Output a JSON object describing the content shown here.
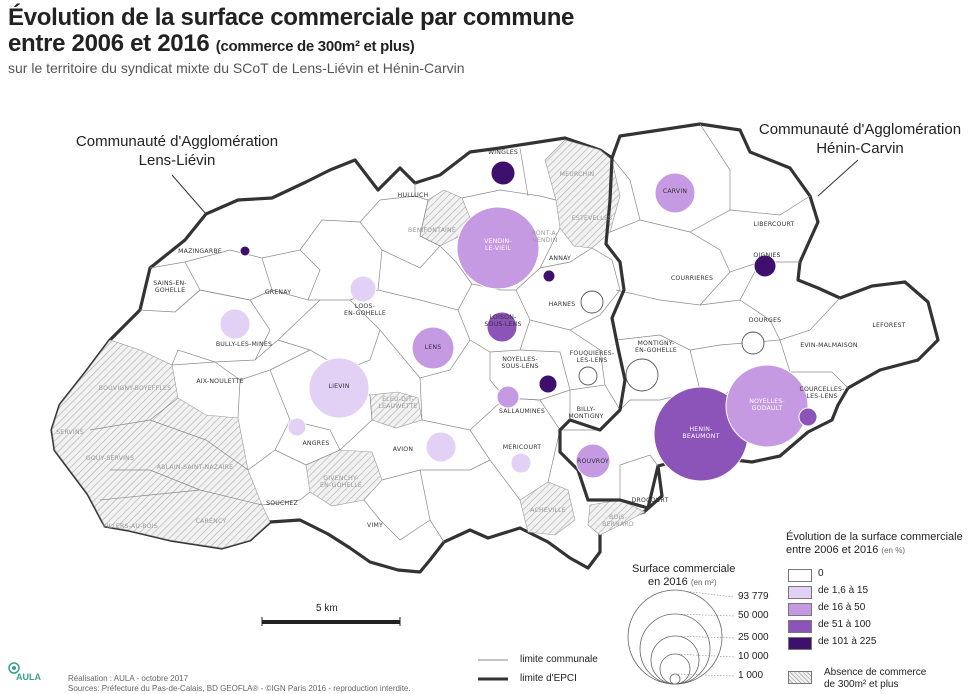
{
  "title": {
    "line1": "Évolution de la surface commerciale par commune",
    "line2": "entre 2006 et 2016",
    "line2_sub": "(commerce de 300m² et plus)",
    "subtitle": "sur le territoire du syndicat mixte du SCoT de Lens-Liévin et Hénin-Carvin"
  },
  "epci": {
    "lens_lievin": [
      "Communauté d'Agglomération",
      "Lens-Liévin"
    ],
    "henin_carvin": [
      "Communauté d'Agglomération",
      "Hénin-Carvin"
    ]
  },
  "colors": {
    "class0": "#ffffff",
    "class1": "#e3d0f5",
    "class2": "#c59ae3",
    "class3": "#8c53b8",
    "class4": "#3f0f6e",
    "hatch": "#bdbdbd",
    "border": "#444444"
  },
  "communes": [
    {
      "name": "WINGLES",
      "lines": [
        "WINGLES"
      ],
      "cls": 4,
      "r": 12
    },
    {
      "name": "MEURCHIN",
      "lines": [
        "MEURCHIN"
      ],
      "cls": -1
    },
    {
      "name": "ESTEVELLES",
      "lines": [
        "ESTEVELLES"
      ],
      "cls": -1
    },
    {
      "name": "HULLUCH",
      "lines": [
        "HULLUCH"
      ],
      "cls": 0,
      "r": 0
    },
    {
      "name": "BENIFONTAINE",
      "lines": [
        "BENIFONTAINE"
      ],
      "cls": -1
    },
    {
      "name": "VENDIN-LE-VIEIL",
      "lines": [
        "VENDIN-",
        "LE-VIEIL"
      ],
      "cls": 2,
      "r": 41
    },
    {
      "name": "PONT-A-VENDIN",
      "lines": [
        "PONT-A-",
        "VENDIN"
      ],
      "cls": -1
    },
    {
      "name": "ANNAY",
      "lines": [
        "ANNAY"
      ],
      "cls": 4,
      "r": 6
    },
    {
      "name": "CARVIN",
      "lines": [
        "CARVIN"
      ],
      "cls": 2,
      "r": 20
    },
    {
      "name": "LIBERCOURT",
      "lines": [
        "LIBERCOURT"
      ],
      "cls": 0,
      "r": 0
    },
    {
      "name": "MAZINGARBE",
      "lines": [
        "MAZINGARBE"
      ],
      "cls": 4,
      "r": 5
    },
    {
      "name": "SAINS-EN-GOHELLE",
      "lines": [
        "SAINS-EN-",
        "GOHELLE"
      ],
      "cls": 0,
      "r": 0
    },
    {
      "name": "GRENAY",
      "lines": [
        "GRENAY"
      ],
      "cls": 0,
      "r": 0
    },
    {
      "name": "LOOS-EN-GOHELLE",
      "lines": [
        "LOOS-",
        "EN-GOHELLE"
      ],
      "cls": 1,
      "r": 13
    },
    {
      "name": "HARNES",
      "lines": [
        "HARNES"
      ],
      "cls": 0,
      "r": 11
    },
    {
      "name": "COURRIERES",
      "lines": [
        "COURRIERES"
      ],
      "cls": 0,
      "r": 0
    },
    {
      "name": "OIGNIES",
      "lines": [
        "OIGNIES"
      ],
      "cls": 4,
      "r": 11
    },
    {
      "name": "BULLY-LES-MINES",
      "lines": [
        "BULLY-LES-MINES"
      ],
      "cls": 1,
      "r": 15
    },
    {
      "name": "LOISON-SOUS-LENS",
      "lines": [
        "LOISON-",
        "SOUS-LENS"
      ],
      "cls": 3,
      "r": 15
    },
    {
      "name": "LENS",
      "lines": [
        "LENS"
      ],
      "cls": 2,
      "r": 21
    },
    {
      "name": "DOURGES",
      "lines": [
        "DOURGES"
      ],
      "cls": 0,
      "r": 11
    },
    {
      "name": "LEFOREST",
      "lines": [
        "LEFOREST"
      ],
      "cls": 0,
      "r": 0
    },
    {
      "name": "EVIN-MALMAISON",
      "lines": [
        "EVIN-MALMAISON"
      ],
      "cls": 0,
      "r": 0
    },
    {
      "name": "MONTIGNY-EN-GOHELLE",
      "lines": [
        "MONTIGNY-",
        "EN-GOHELLE"
      ],
      "cls": 0,
      "r": 16
    },
    {
      "name": "NOYELLES-SOUS-LENS",
      "lines": [
        "NOYELLES-",
        "SOUS-LENS"
      ],
      "cls": 4,
      "r": 9
    },
    {
      "name": "FOUQUIERES-LES-LENS",
      "lines": [
        "FOUQUIERES-",
        "LES-LENS"
      ],
      "cls": 0,
      "r": 9
    },
    {
      "name": "AIX-NOULETTE",
      "lines": [
        "AIX-NOULETTE"
      ],
      "cls": 0,
      "r": 0
    },
    {
      "name": "LIEVIN",
      "lines": [
        "LIEVIN"
      ],
      "cls": 1,
      "r": 30
    },
    {
      "name": "ELEU-DIT-LEAUWETTE",
      "lines": [
        "ELEU-DIT-",
        "LEAUWETTE"
      ],
      "cls": -1
    },
    {
      "name": "SALLAUMINES",
      "lines": [
        "SALLAUMINES"
      ],
      "cls": 2,
      "r": 11
    },
    {
      "name": "BILLY-MONTIGNY",
      "lines": [
        "BILLY-",
        "MONTIGNY"
      ],
      "cls": 0,
      "r": 0
    },
    {
      "name": "NOYELLES-GODAULT",
      "lines": [
        "NOYELLES-",
        "GODAULT"
      ],
      "cls": 2,
      "r": 41
    },
    {
      "name": "COURCELLES-LES-LENS",
      "lines": [
        "COURCELLES-",
        "LES-LENS"
      ],
      "cls": 3,
      "r": 9
    },
    {
      "name": "BOUVIGNY-BOYEFFLES",
      "lines": [
        "BOUVIGNY-BOYEFFLES"
      ],
      "cls": -1
    },
    {
      "name": "ANGRES",
      "lines": [
        "ANGRES"
      ],
      "cls": 1,
      "r": 9
    },
    {
      "name": "HENIN-BEAUMONT",
      "lines": [
        "HENIN-",
        "BEAUMONT"
      ],
      "cls": 3,
      "r": 47
    },
    {
      "name": "SERVINS",
      "lines": [
        "SERVINS"
      ],
      "cls": -1
    },
    {
      "name": "GOUY-SERVINS",
      "lines": [
        "GOUY-SERVINS"
      ],
      "cls": -1
    },
    {
      "name": "ABLAIN-SAINT-NAZAIRE",
      "lines": [
        "ABLAIN-SAINT-NAZAIRE"
      ],
      "cls": -1
    },
    {
      "name": "AVION",
      "lines": [
        "AVION"
      ],
      "cls": 1,
      "r": 15
    },
    {
      "name": "MERICOURT",
      "lines": [
        "MERICOURT"
      ],
      "cls": 1,
      "r": 10
    },
    {
      "name": "ROUVROY",
      "lines": [
        "ROUVROY"
      ],
      "cls": 2,
      "r": 17
    },
    {
      "name": "DROCOURT",
      "lines": [
        "DROCOURT"
      ],
      "cls": 0,
      "r": 0
    },
    {
      "name": "GIVENCHY-EN-GOHELLE",
      "lines": [
        "GIVENCHY-",
        "EN-GOHELLE"
      ],
      "cls": -1
    },
    {
      "name": "SOUCHEZ",
      "lines": [
        "SOUCHEZ"
      ],
      "cls": 0,
      "r": 0
    },
    {
      "name": "VILLERS-AU-BOIS",
      "lines": [
        "VILLERS-AU-BOIS"
      ],
      "cls": -1
    },
    {
      "name": "CARENCY",
      "lines": [
        "CARENCY"
      ],
      "cls": -1
    },
    {
      "name": "ACHEVILLE",
      "lines": [
        "ACHEVILLE"
      ],
      "cls": -1
    },
    {
      "name": "VIMY",
      "lines": [
        "VIMY"
      ],
      "cls": 0,
      "r": 0
    },
    {
      "name": "BOIS-BERNARD",
      "lines": [
        "BOIS-",
        "BERNARD"
      ],
      "cls": -1
    }
  ],
  "scale_bar": {
    "label": "5 km"
  },
  "legend": {
    "evolution_title_line1": "Évolution de la surface commerciale",
    "evolution_title_line2": "entre 2006 et 2016",
    "evolution_unit": "(en %)",
    "classes": [
      {
        "label": "0",
        "color": "#ffffff"
      },
      {
        "label": "de 1,6 à 15",
        "color": "#e3d0f5"
      },
      {
        "label": "de 16 à 50",
        "color": "#c59ae3"
      },
      {
        "label": "de 51 à 100",
        "color": "#8c53b8"
      },
      {
        "label": "de 101 à 225",
        "color": "#3f0f6e"
      }
    ],
    "no_commerce_line1": "Absence de commerce",
    "no_commerce_line2": "de 300m² et plus",
    "surface_title_line1": "Surface commerciale",
    "surface_title_line2": "en 2016",
    "surface_unit": "(en m²)",
    "surface_values": [
      "93 779",
      "50 000",
      "25 000",
      "10 000",
      "1 000"
    ],
    "limit_communale": "limite communale",
    "limit_epci": "limite d'EPCI"
  },
  "footer": {
    "line1": "Réalisation : AULA - octobre 2017",
    "line2": "Sources: Préfecture du Pas-de-Calais, BD GEOFLA® - ©IGN Paris 2016 - reproduction interdite.",
    "logo": "AULA"
  }
}
